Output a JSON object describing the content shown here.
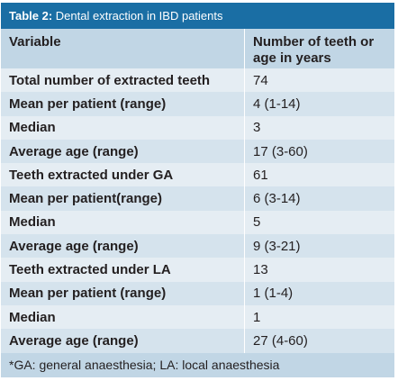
{
  "table": {
    "caption_label": "Table 2:",
    "caption_text": " Dental extraction in IBD patients",
    "header": {
      "variable": "Variable",
      "value_line1": "Number of teeth or",
      "value_line2": "age in years"
    },
    "rows": [
      {
        "variable": "Total number of extracted teeth",
        "value": "74"
      },
      {
        "variable": "Mean per patient (range)",
        "value": "4 (1-14)"
      },
      {
        "variable": "Median",
        "value": "3"
      },
      {
        "variable": "Average age (range)",
        "value": "17 (3-60)"
      },
      {
        "variable": "Teeth extracted under GA",
        "value": "61"
      },
      {
        "variable": "Mean per patient(range)",
        "value": "6 (3-14)"
      },
      {
        "variable": "Median",
        "value": "5"
      },
      {
        "variable": "Average age (range)",
        "value": "9 (3-21)"
      },
      {
        "variable": "Teeth extracted under LA",
        "value": "13"
      },
      {
        "variable": "Mean per patient (range)",
        "value": "1 (1-4)"
      },
      {
        "variable": "Median",
        "value": "1"
      },
      {
        "variable": "Average age (range)",
        "value": "27 (4-60)"
      }
    ],
    "footnote": "*GA: general anaesthesia; LA: local anaesthesia"
  },
  "colors": {
    "title_bar": "#1a6ea4",
    "header_bg": "#c1d6e5",
    "row_light": "#e5edf3",
    "row_dark": "#d5e3ed"
  }
}
